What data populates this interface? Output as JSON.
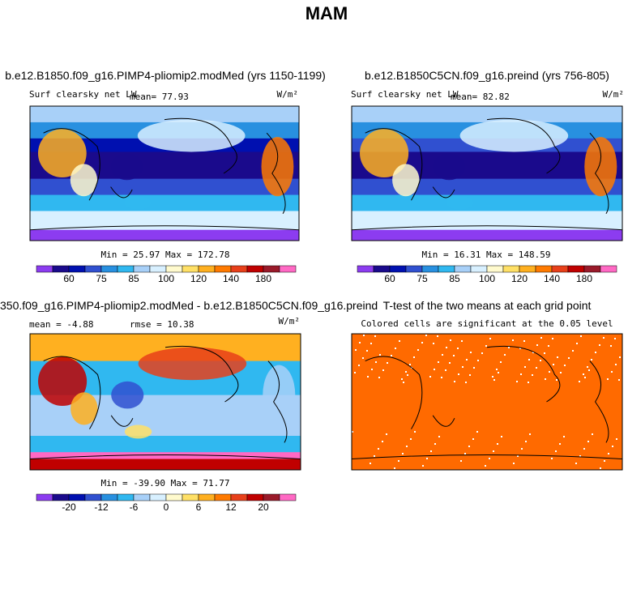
{
  "title": "MAM",
  "panels": [
    {
      "title": "b.e12.B1850.f09_g16.PIMP4-pliomip2.modMed (yrs 1150-1199)",
      "variable": "Surf clearsky net LW",
      "stat": "mean=  77.93",
      "units": "W/m²",
      "range": "Min =  25.97 Max = 172.78",
      "colorbar_labels": [
        "60",
        "75",
        "85",
        "100",
        "120",
        "140",
        "180"
      ]
    },
    {
      "title": "b.e12.B1850C5CN.f09_g16.preind (yrs 756-805)",
      "variable": "Surf clearsky net LW",
      "stat": "mean=  82.82",
      "units": "W/m²",
      "range": "Min =  16.31 Max = 148.59",
      "colorbar_labels": [
        "60",
        "75",
        "85",
        "100",
        "120",
        "140",
        "180"
      ]
    },
    {
      "title": "350.f09_g16.PIMP4-pliomip2.modMed - b.e12.B1850C5CN.f09_g16.preind",
      "stat": "mean =  -4.88",
      "rmse": "rmse =  10.38",
      "units": "W/m²",
      "range": "Min = -39.90 Max =  71.77",
      "colorbar_labels": [
        "-20",
        "-12",
        "-6",
        "0",
        "6",
        "12",
        "20"
      ]
    },
    {
      "title": "T-test of the two means at each grid point",
      "subtitle": "Colored cells are significant at the 0.05 level"
    }
  ]
}
